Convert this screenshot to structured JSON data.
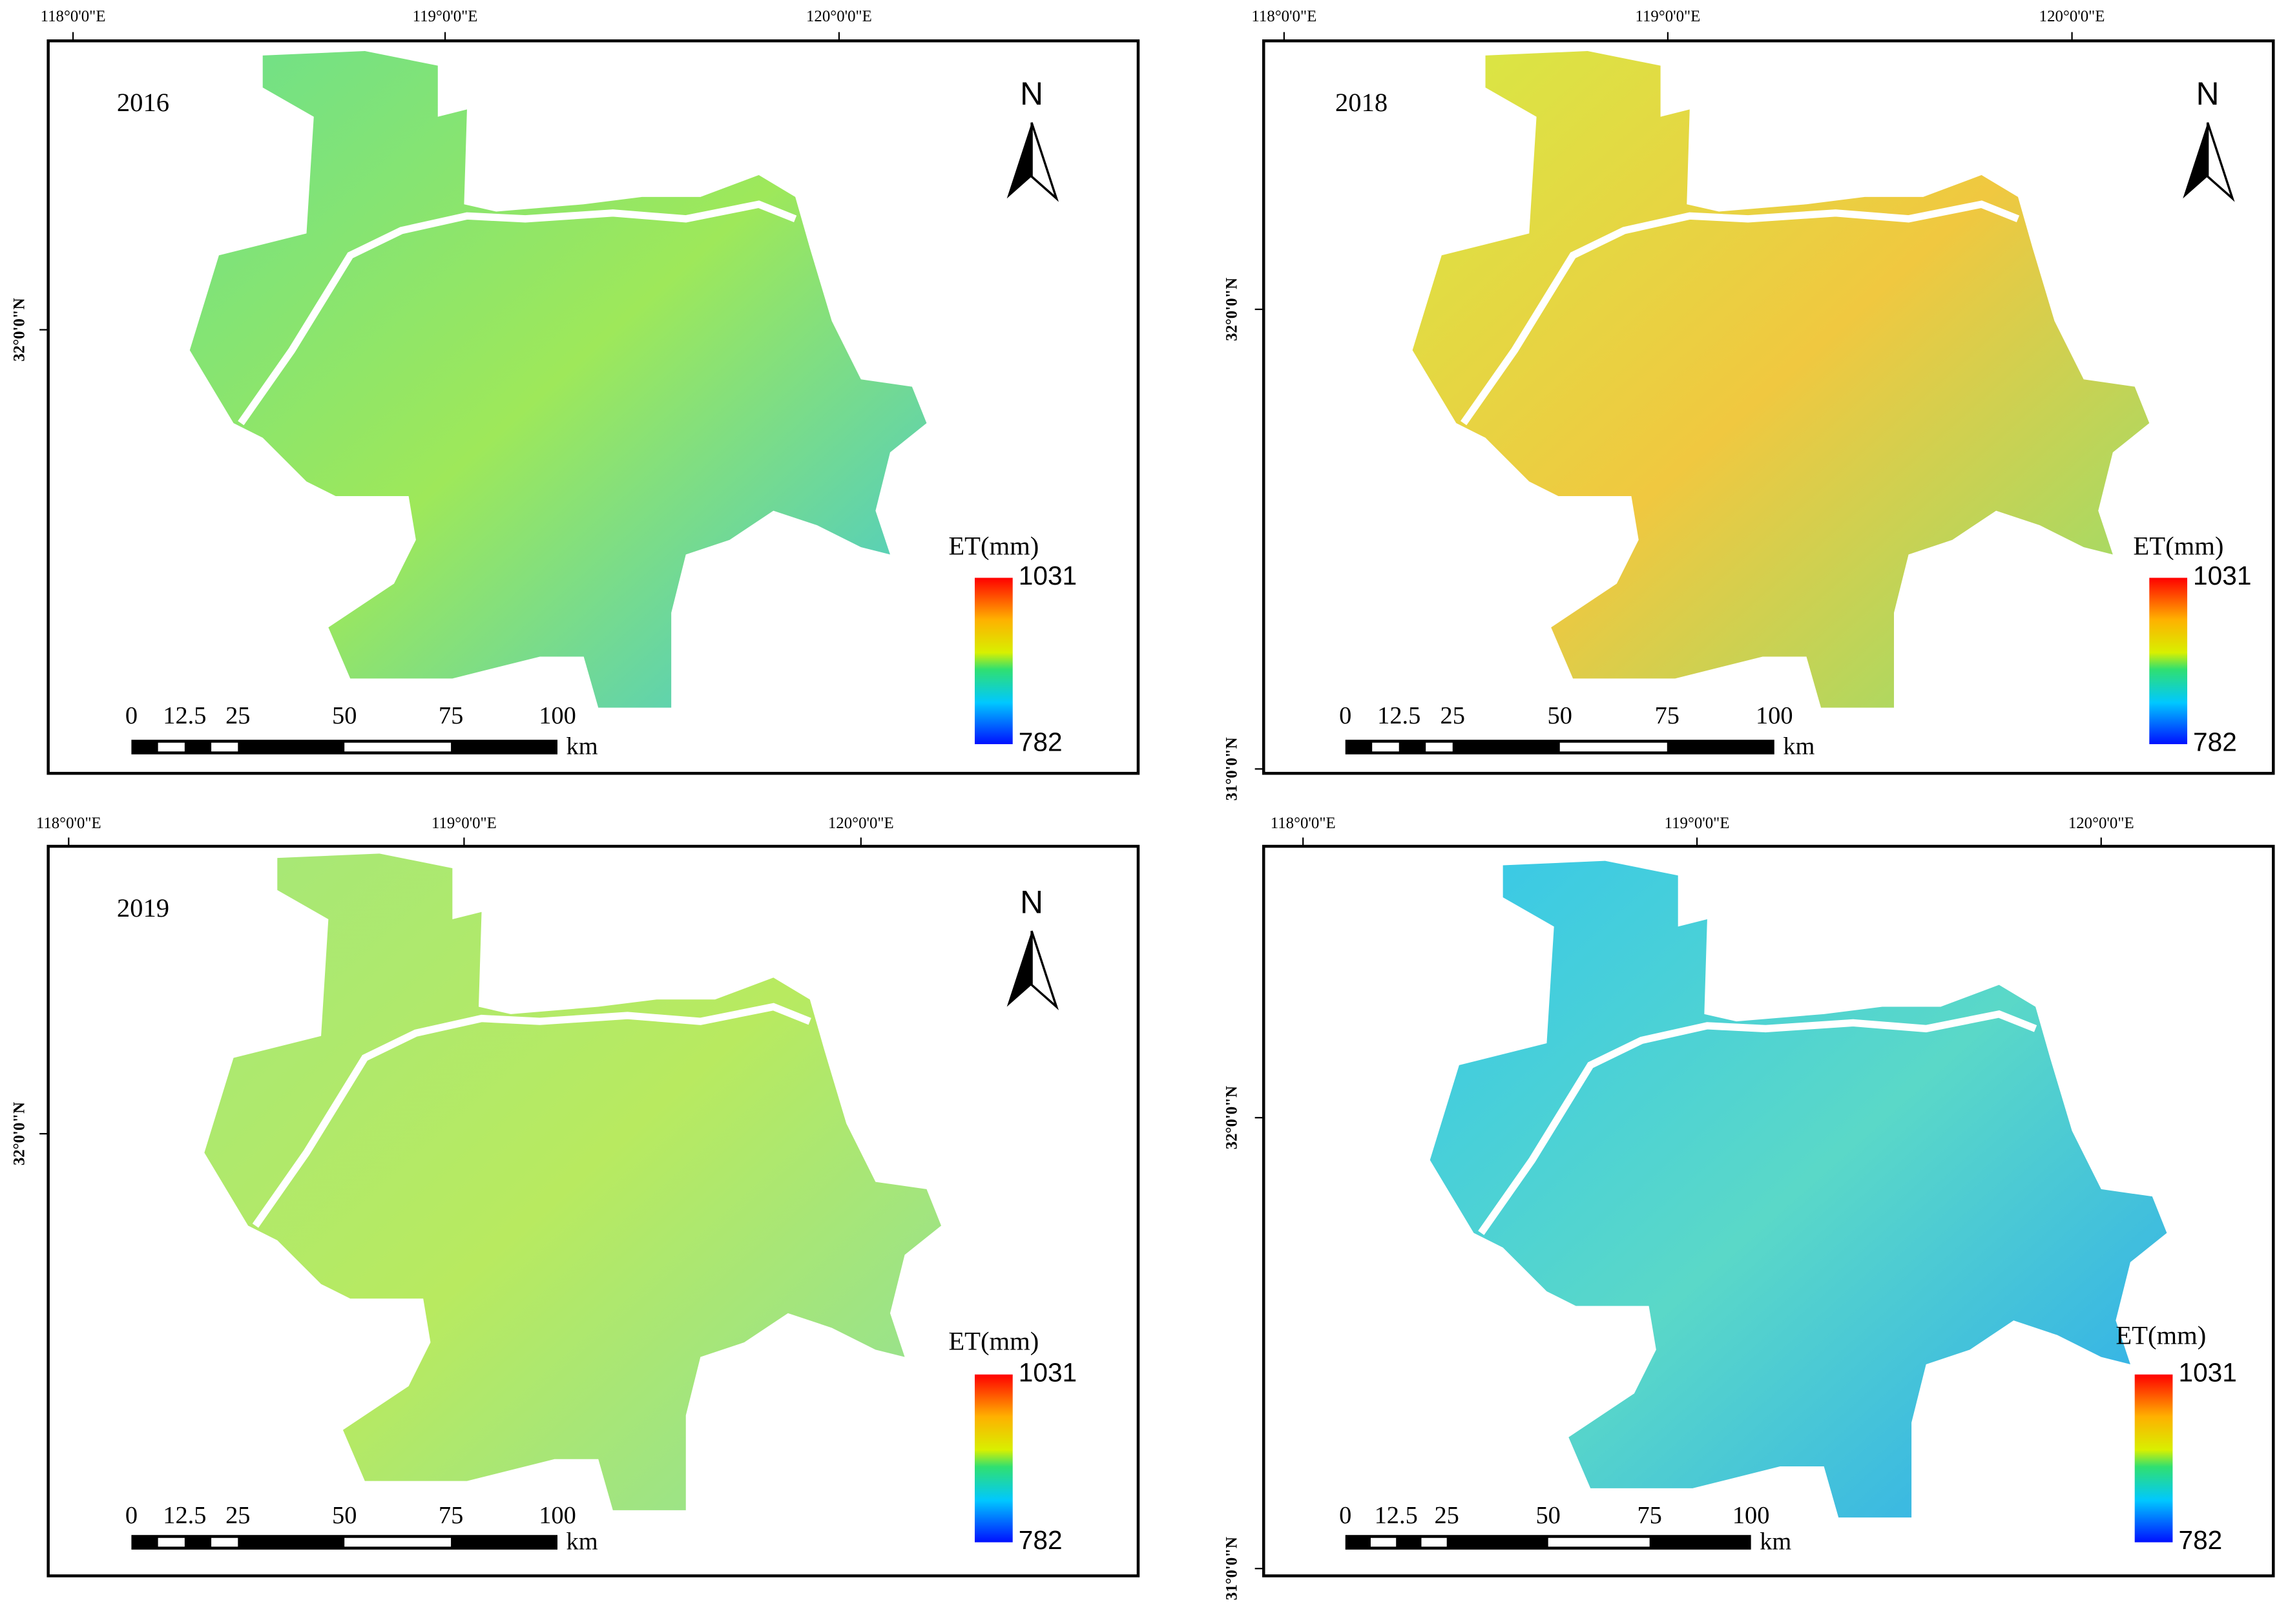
{
  "panels": [
    {
      "year": "2016",
      "longitude_labels": [
        "118°0'0\"E",
        "119°0'0\"E",
        "120°0'0\"E"
      ],
      "latitude_labels": [
        "32°0'0\"N"
      ],
      "north": "N",
      "legend": {
        "title": "ET(mm)",
        "max": 1031,
        "min": 782
      },
      "scale_bar": {
        "ticks": [
          0,
          12.5,
          25,
          50,
          75,
          100
        ],
        "unit": "km"
      }
    },
    {
      "year": "2018",
      "longitude_labels": [
        "118°0'0\"E",
        "119°0'0\"E",
        "120°0'0\"E"
      ],
      "latitude_labels": [
        "32°0'0\"N",
        "31°0'0\"N"
      ],
      "north": "N",
      "legend": {
        "title": "ET(mm)",
        "max": 1031,
        "min": 782
      },
      "scale_bar": {
        "ticks": [
          0,
          12.5,
          25,
          50,
          75,
          100
        ],
        "unit": "km"
      }
    },
    {
      "year": "2019",
      "longitude_labels": [
        "118°0'0\"E",
        "119°0'0\"E",
        "120°0'0\"E"
      ],
      "latitude_labels": [
        "32°0'0\"N"
      ],
      "north": "N",
      "legend": {
        "title": "ET(mm)",
        "max": 1031,
        "min": 782
      },
      "scale_bar": {
        "ticks": [
          0,
          12.5,
          25,
          50,
          75,
          100
        ],
        "unit": "km"
      }
    },
    {
      "longitude_labels": [
        "118°0'0\"E",
        "119°0'0\"E",
        "120°0'0\"E"
      ],
      "latitude_labels": [
        "32°0'0\"N",
        "31°0'0\"N"
      ],
      "legend": {
        "title": "ET(mm)",
        "max": 1031,
        "min": 782
      },
      "scale_bar": {
        "ticks": [
          0,
          12.5,
          25,
          50,
          75,
          100
        ],
        "unit": "km"
      }
    }
  ]
}
